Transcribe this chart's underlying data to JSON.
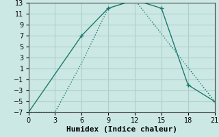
{
  "xlabel": "Humidex (Indice chaleur)",
  "background_color": "#cce8e4",
  "grid_color": "#aed0cc",
  "line_color": "#1a7a6e",
  "line1_x": [
    0,
    6,
    9,
    12,
    15,
    18,
    21
  ],
  "line1_y": [
    -7,
    7,
    12,
    13.5,
    12,
    -2,
    -5
  ],
  "line2_x": [
    0,
    3,
    6,
    9,
    12,
    21
  ],
  "line2_y": [
    -7,
    -7,
    2,
    12,
    13.5,
    -5
  ],
  "xlim": [
    0,
    21
  ],
  "ylim": [
    -7,
    13
  ],
  "xticks": [
    0,
    3,
    6,
    9,
    12,
    15,
    18,
    21
  ],
  "yticks": [
    -7,
    -5,
    -3,
    -1,
    1,
    3,
    5,
    7,
    9,
    11,
    13
  ],
  "marker_size": 4,
  "linewidth": 1.0,
  "tick_fontsize": 7,
  "xlabel_fontsize": 8
}
